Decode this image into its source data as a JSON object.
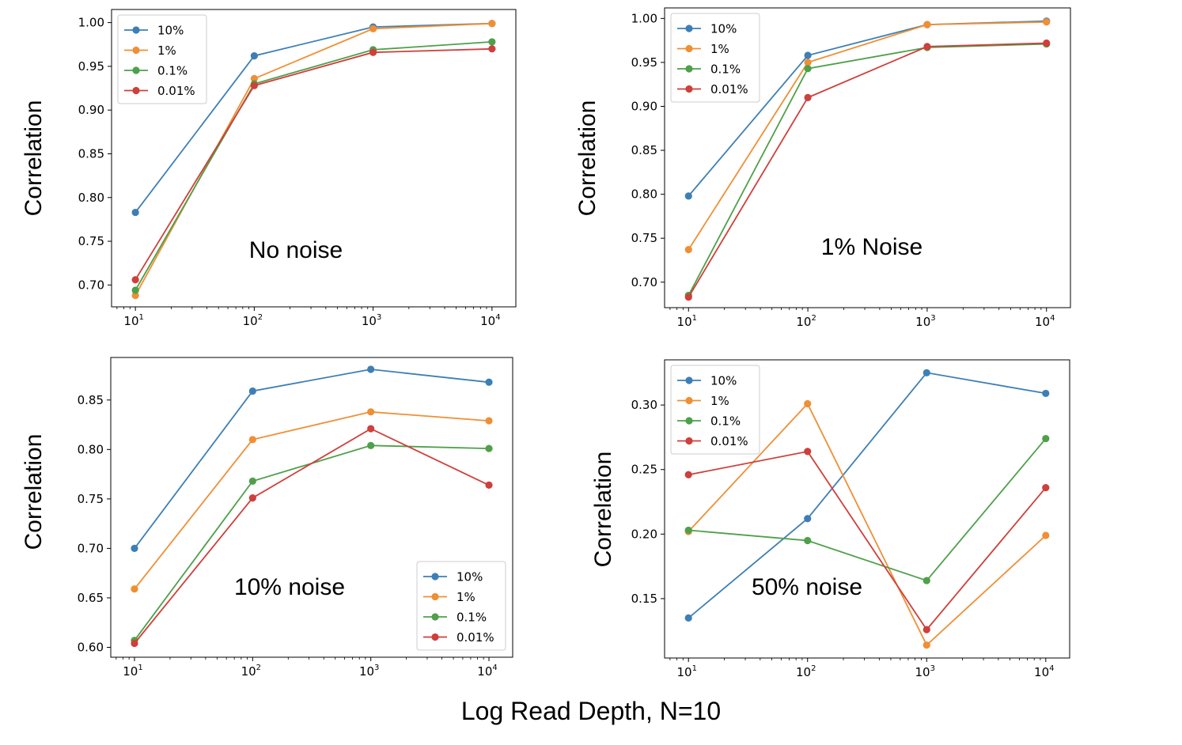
{
  "figure": {
    "xlabel": "Log Read Depth, N=10"
  },
  "colors": {
    "10%": "#3d7fb5",
    "1%": "#ef8f35",
    "0.1%": "#4ea04a",
    "0.01%": "#cf3f3b"
  },
  "chart_data": [
    {
      "type": "line",
      "annotation": "No noise",
      "ylabel": "Correlation",
      "x": [
        10,
        100,
        1000,
        10000
      ],
      "xscale": "log",
      "xtick_labels": [
        [
          "10",
          "1"
        ],
        [
          "10",
          "2"
        ],
        [
          "10",
          "3"
        ],
        [
          "10",
          "4"
        ]
      ],
      "ylim": [
        0.675,
        1.015
      ],
      "yticks": [
        0.7,
        0.75,
        0.8,
        0.85,
        0.9,
        0.95,
        1.0
      ],
      "ytick_labels": [
        "0.70",
        "0.75",
        "0.80",
        "0.85",
        "0.90",
        "0.95",
        "1.00"
      ],
      "legend": "upper-left",
      "series": [
        {
          "name": "10%",
          "values": [
            0.783,
            0.962,
            0.995,
            0.999
          ]
        },
        {
          "name": "1%",
          "values": [
            0.688,
            0.936,
            0.993,
            0.999
          ]
        },
        {
          "name": "0.1%",
          "values": [
            0.694,
            0.93,
            0.969,
            0.978
          ]
        },
        {
          "name": "0.01%",
          "values": [
            0.706,
            0.928,
            0.966,
            0.97
          ]
        }
      ]
    },
    {
      "type": "line",
      "annotation": "1% Noise",
      "ylabel": "Correlation",
      "x": [
        10,
        100,
        1000,
        10000
      ],
      "xscale": "log",
      "xtick_labels": [
        [
          "10",
          "1"
        ],
        [
          "10",
          "2"
        ],
        [
          "10",
          "3"
        ],
        [
          "10",
          "4"
        ]
      ],
      "ylim": [
        0.671,
        1.012
      ],
      "yticks": [
        0.7,
        0.75,
        0.8,
        0.85,
        0.9,
        0.95,
        1.0
      ],
      "ytick_labels": [
        "0.70",
        "0.75",
        "0.80",
        "0.85",
        "0.90",
        "0.95",
        "1.00"
      ],
      "legend": "upper-left",
      "series": [
        {
          "name": "10%",
          "values": [
            0.798,
            0.958,
            0.993,
            0.997
          ]
        },
        {
          "name": "1%",
          "values": [
            0.737,
            0.95,
            0.993,
            0.996
          ]
        },
        {
          "name": "0.1%",
          "values": [
            0.685,
            0.943,
            0.967,
            0.971
          ]
        },
        {
          "name": "0.01%",
          "values": [
            0.683,
            0.91,
            0.968,
            0.972
          ]
        }
      ]
    },
    {
      "type": "line",
      "annotation": "10% noise",
      "ylabel": "Correlation",
      "x": [
        10,
        100,
        1000,
        10000
      ],
      "xscale": "log",
      "xtick_labels": [
        [
          "10",
          "1"
        ],
        [
          "10",
          "2"
        ],
        [
          "10",
          "3"
        ],
        [
          "10",
          "4"
        ]
      ],
      "ylim": [
        0.59,
        0.893
      ],
      "yticks": [
        0.6,
        0.65,
        0.7,
        0.75,
        0.8,
        0.85
      ],
      "ytick_labels": [
        "0.60",
        "0.65",
        "0.70",
        "0.75",
        "0.80",
        "0.85"
      ],
      "legend": "lower-right",
      "series": [
        {
          "name": "10%",
          "values": [
            0.7,
            0.859,
            0.881,
            0.868
          ]
        },
        {
          "name": "1%",
          "values": [
            0.659,
            0.81,
            0.838,
            0.829
          ]
        },
        {
          "name": "0.1%",
          "values": [
            0.607,
            0.768,
            0.804,
            0.801
          ]
        },
        {
          "name": "0.01%",
          "values": [
            0.604,
            0.751,
            0.821,
            0.764
          ]
        }
      ]
    },
    {
      "type": "line",
      "annotation": "50% noise",
      "ylabel": "Correlation",
      "x": [
        10,
        100,
        1000,
        10000
      ],
      "xscale": "log",
      "xtick_labels": [
        [
          "10",
          "1"
        ],
        [
          "10",
          "2"
        ],
        [
          "10",
          "3"
        ],
        [
          "10",
          "4"
        ]
      ],
      "ylim": [
        0.104,
        0.335
      ],
      "yticks": [
        0.15,
        0.2,
        0.25,
        0.3
      ],
      "ytick_labels": [
        "0.15",
        "0.20",
        "0.25",
        "0.30"
      ],
      "legend": "upper-left",
      "series": [
        {
          "name": "10%",
          "values": [
            0.135,
            0.212,
            0.325,
            0.309
          ]
        },
        {
          "name": "1%",
          "values": [
            0.202,
            0.301,
            0.114,
            0.199
          ]
        },
        {
          "name": "0.1%",
          "values": [
            0.203,
            0.195,
            0.164,
            0.274
          ]
        },
        {
          "name": "0.01%",
          "values": [
            0.246,
            0.264,
            0.126,
            0.236
          ]
        }
      ]
    }
  ]
}
